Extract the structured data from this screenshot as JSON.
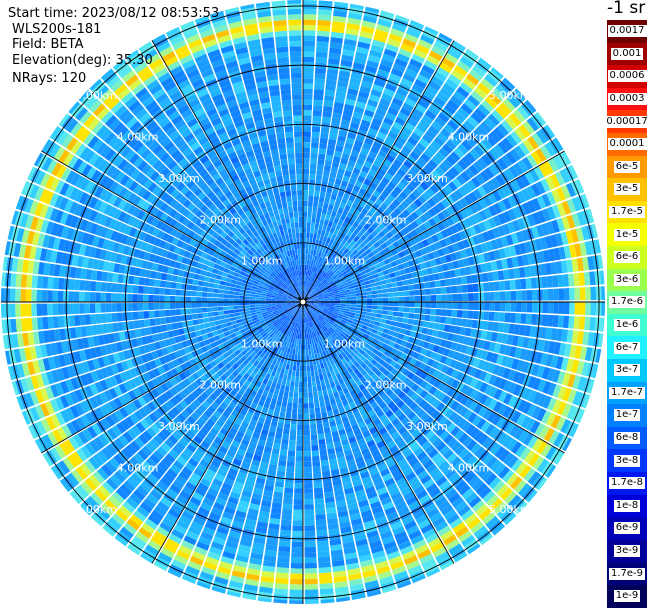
{
  "header": {
    "start_time": "Start time: 2023/08/12 08:53:53",
    "instrument": "WLS200s-181",
    "field": "Field: BETA",
    "elevation": "Elevation(deg): 35.30",
    "nrays": "NRays: 120"
  },
  "colorbar": {
    "unit_label": "-1 sr",
    "labels": [
      "0.0017",
      "0.001",
      "0.0006",
      "0.0003",
      "0.00017",
      "0.0001",
      "6e-5",
      "3e-5",
      "1.7e-5",
      "1e-5",
      "6e-6",
      "3e-6",
      "1.7e-6",
      "1e-6",
      "6e-7",
      "3e-7",
      "1.7e-7",
      "1e-7",
      "6e-8",
      "3e-8",
      "1.7e-8",
      "1e-8",
      "6e-9",
      "3e-9",
      "1.7e-9",
      "1e-9"
    ],
    "colors": [
      "#6e0000",
      "#a00000",
      "#d00000",
      "#ff1010",
      "#ff3a00",
      "#ff6a00",
      "#ff9a00",
      "#ffc000",
      "#ffe000",
      "#f6ff00",
      "#ccff20",
      "#9cff50",
      "#70ffa0",
      "#40ffd0",
      "#20f0ff",
      "#00c8ff",
      "#00a0ff",
      "#0080ff",
      "#005cff",
      "#0038ff",
      "#0018f0",
      "#0000d8",
      "#0000b8",
      "#000098",
      "#000078",
      "#00005a"
    ]
  },
  "chart_data": {
    "type": "heatmap",
    "projection": "polar (PPI scan)",
    "n_rays": 120,
    "range_rings_km": [
      1.0,
      2.0,
      3.0,
      4.0,
      5.0
    ],
    "ring_labels": [
      "1.00km",
      "2.00km",
      "3.00km",
      "4.00km",
      "5.00km"
    ],
    "max_range_km": 5.1,
    "radial_lines_deg": [
      0,
      30,
      60,
      90,
      120,
      150,
      180,
      210,
      240,
      270,
      300,
      330
    ],
    "color_scale": "log",
    "value_range": [
      1e-09,
      0.0017
    ],
    "dominant_level_inner": "1e-7",
    "dominant_level_outer": "1.7e-7",
    "enhanced_band_km": [
      4.5,
      4.9
    ],
    "enhanced_band_level": "1.7e-5"
  }
}
